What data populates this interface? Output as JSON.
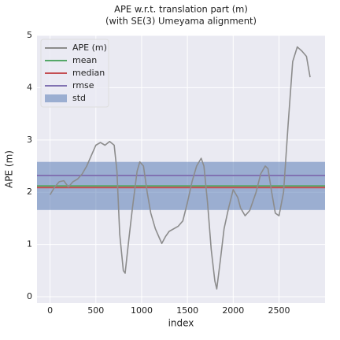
{
  "chart_data": {
    "type": "line",
    "title": "APE w.r.t. translation part (m)",
    "subtitle": "(with SE(3) Umeyama alignment)",
    "x_label": "index",
    "y_label": "APE (m)",
    "xlim": [
      -143,
      3003
    ],
    "ylim": [
      -0.12,
      5.0
    ],
    "xticks": [
      0,
      500,
      1000,
      1500,
      2000,
      2500
    ],
    "yticks": [
      0,
      1,
      2,
      3,
      4,
      5
    ],
    "grid": true,
    "legend": "upper left",
    "series": [
      {
        "name": "APE (m)",
        "color": "#8c8c8c",
        "x": [
          0,
          50,
          100,
          150,
          200,
          250,
          300,
          350,
          400,
          450,
          500,
          550,
          600,
          650,
          700,
          730,
          760,
          800,
          820,
          860,
          900,
          950,
          980,
          1020,
          1060,
          1100,
          1150,
          1200,
          1220,
          1260,
          1300,
          1400,
          1450,
          1500,
          1550,
          1600,
          1650,
          1680,
          1720,
          1760,
          1800,
          1820,
          1860,
          1900,
          1950,
          2000,
          2050,
          2080,
          2130,
          2180,
          2250,
          2300,
          2350,
          2380,
          2420,
          2460,
          2500,
          2550,
          2600,
          2650,
          2700,
          2750,
          2800,
          2840
        ],
        "values": [
          1.95,
          2.1,
          2.2,
          2.22,
          2.1,
          2.2,
          2.25,
          2.35,
          2.5,
          2.7,
          2.9,
          2.95,
          2.9,
          2.97,
          2.9,
          2.4,
          1.2,
          0.5,
          0.45,
          1.1,
          1.7,
          2.4,
          2.58,
          2.5,
          2.0,
          1.6,
          1.3,
          1.1,
          1.02,
          1.15,
          1.25,
          1.35,
          1.45,
          1.8,
          2.2,
          2.5,
          2.65,
          2.5,
          1.8,
          0.9,
          0.3,
          0.15,
          0.7,
          1.3,
          1.7,
          2.05,
          1.9,
          1.7,
          1.55,
          1.65,
          2.0,
          2.35,
          2.5,
          2.45,
          2.0,
          1.6,
          1.55,
          2.0,
          3.3,
          4.5,
          4.78,
          4.7,
          4.6,
          4.2
        ]
      }
    ],
    "lines": [
      {
        "name": "mean",
        "value": 2.12,
        "color": "#55a868"
      },
      {
        "name": "median",
        "value": 2.09,
        "color": "#c44e52"
      },
      {
        "name": "rmse",
        "value": 2.32,
        "color": "#8172b2"
      }
    ],
    "band": {
      "name": "std",
      "value": 0.46,
      "color": "#4c72b0"
    }
  }
}
